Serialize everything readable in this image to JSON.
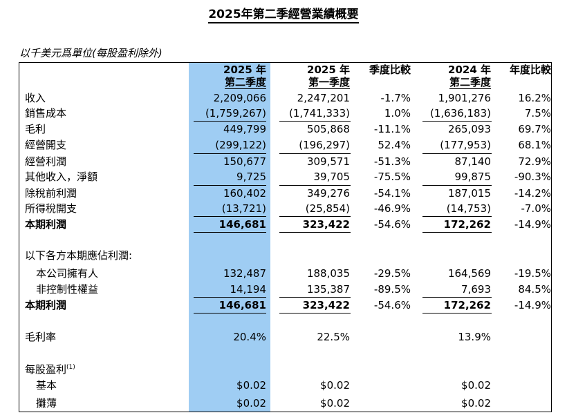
{
  "title": "2025年第二季經營業績概要",
  "unit_note": "以千美元爲單位(每股盈利除外)",
  "headers": {
    "c1": [
      "2025 年",
      "第二季度"
    ],
    "c2": [
      "2025 年",
      "第一季度"
    ],
    "c3": [
      "季度比較"
    ],
    "c4": [
      "2024 年",
      "第二季度"
    ],
    "c5": [
      "年度比較"
    ]
  },
  "rows": [
    {
      "label": "收入",
      "c1": "2,209,066",
      "c2": "2,247,201",
      "c3": "-1.7%",
      "c4": "1,901,276",
      "c5": "16.2%"
    },
    {
      "label": "銷售成本",
      "c1": "(1,759,267)",
      "c2": "(1,741,333)",
      "c3": "1.0%",
      "c4": "(1,636,183)",
      "c5": "7.5%"
    },
    {
      "label": "毛利",
      "c1": "449,799",
      "c2": "505,868",
      "c3": "-11.1%",
      "c4": "265,093",
      "c5": "69.7%"
    },
    {
      "label": "經營開支",
      "c1": "(299,122)",
      "c2": "(196,297)",
      "c3": "52.4%",
      "c4": "(177,953)",
      "c5": "68.1%"
    },
    {
      "label": "經營利潤",
      "c1": "150,677",
      "c2": "309,571",
      "c3": "-51.3%",
      "c4": "87,140",
      "c5": "72.9%"
    },
    {
      "label": "其他收入，淨額",
      "c1": "9,725",
      "c2": "39,705",
      "c3": "-75.5%",
      "c4": "99,875",
      "c5": "-90.3%"
    },
    {
      "label": "除稅前利潤",
      "c1": "160,402",
      "c2": "349,276",
      "c3": "-54.1%",
      "c4": "187,015",
      "c5": "-14.2%"
    },
    {
      "label": "所得稅開支",
      "c1": "(13,721)",
      "c2": "(25,854)",
      "c3": "-46.9%",
      "c4": "(14,753)",
      "c5": "-7.0%"
    },
    {
      "label": "本期利潤",
      "c1": "146,681",
      "c2": "323,422",
      "c3": "-54.6%",
      "c4": "172,262",
      "c5": "-14.9%"
    },
    {
      "label": "以下各方本期應佔利潤:"
    },
    {
      "label": "本公司擁有人",
      "c1": "132,487",
      "c2": "188,035",
      "c3": "-29.5%",
      "c4": "164,569",
      "c5": "-19.5%"
    },
    {
      "label": "非控制性權益",
      "c1": "14,194",
      "c2": "135,387",
      "c3": "-89.5%",
      "c4": "7,693",
      "c5": "84.5%"
    },
    {
      "label": "本期利潤",
      "c1": "146,681",
      "c2": "323,422",
      "c3": "-54.6%",
      "c4": "172,262",
      "c5": "-14.9%"
    },
    {
      "label": "毛利率",
      "c1": "20.4%",
      "c2": "22.5%",
      "c4": "13.9%"
    },
    {
      "label": "每股盈利",
      "sup": "(1)"
    },
    {
      "label": "基本",
      "c1": "$0.02",
      "c2": "$0.02",
      "c4": "$0.02"
    },
    {
      "label": "攤薄",
      "c1": "$0.02",
      "c2": "$0.02",
      "c4": "$0.02"
    }
  ]
}
